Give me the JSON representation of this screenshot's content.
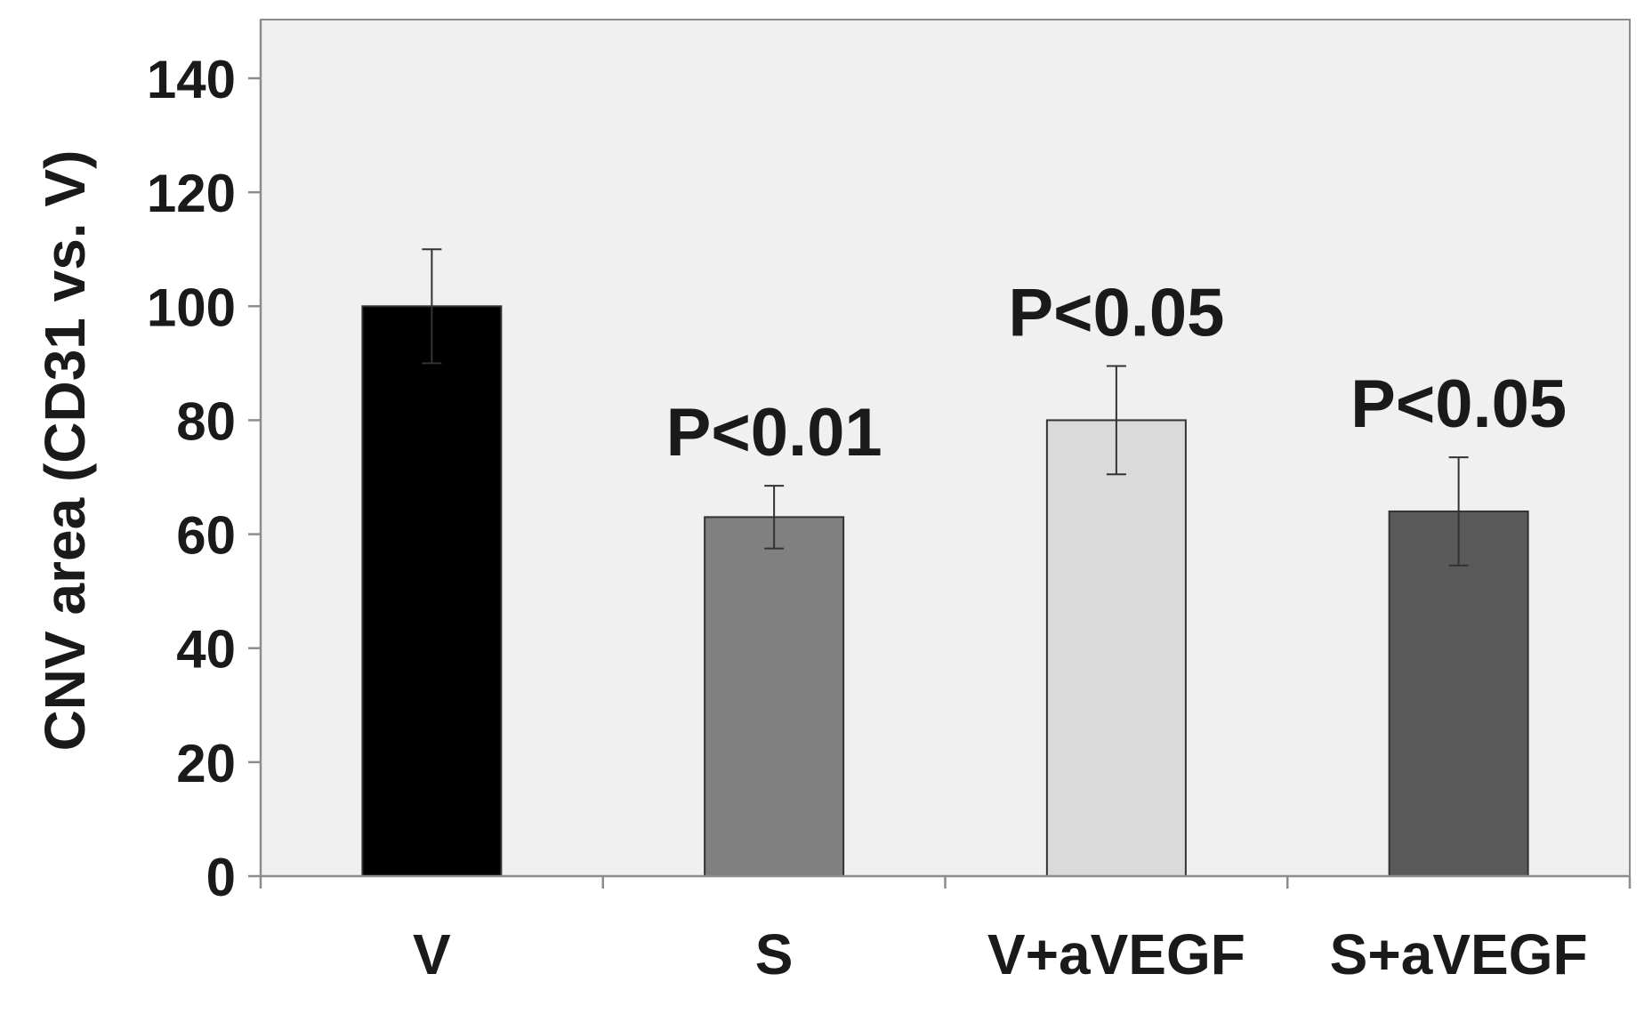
{
  "chart_data": {
    "type": "bar",
    "title": "",
    "xlabel": "",
    "ylabel": "CNV area (CD31 vs. V)",
    "ylim": [
      0,
      150
    ],
    "yticks": [
      0,
      20,
      40,
      60,
      80,
      100,
      120,
      140
    ],
    "ytick_labels": [
      "0",
      "20",
      "40",
      "60",
      "80",
      "100",
      "120",
      "140"
    ],
    "categories": [
      "V",
      "S",
      "V+aVEGF",
      "S+aVEGF"
    ],
    "values": [
      100,
      63,
      80,
      64
    ],
    "errors": [
      10,
      5.5,
      9.5,
      9.5
    ],
    "bar_colors": [
      "#000000",
      "#808080",
      "#dadada",
      "#5a5a5a"
    ],
    "annotations": [
      "",
      "P<0.01",
      "P<0.05",
      "P<0.05"
    ],
    "grid": false,
    "plot_background": "#f0f0f0"
  }
}
